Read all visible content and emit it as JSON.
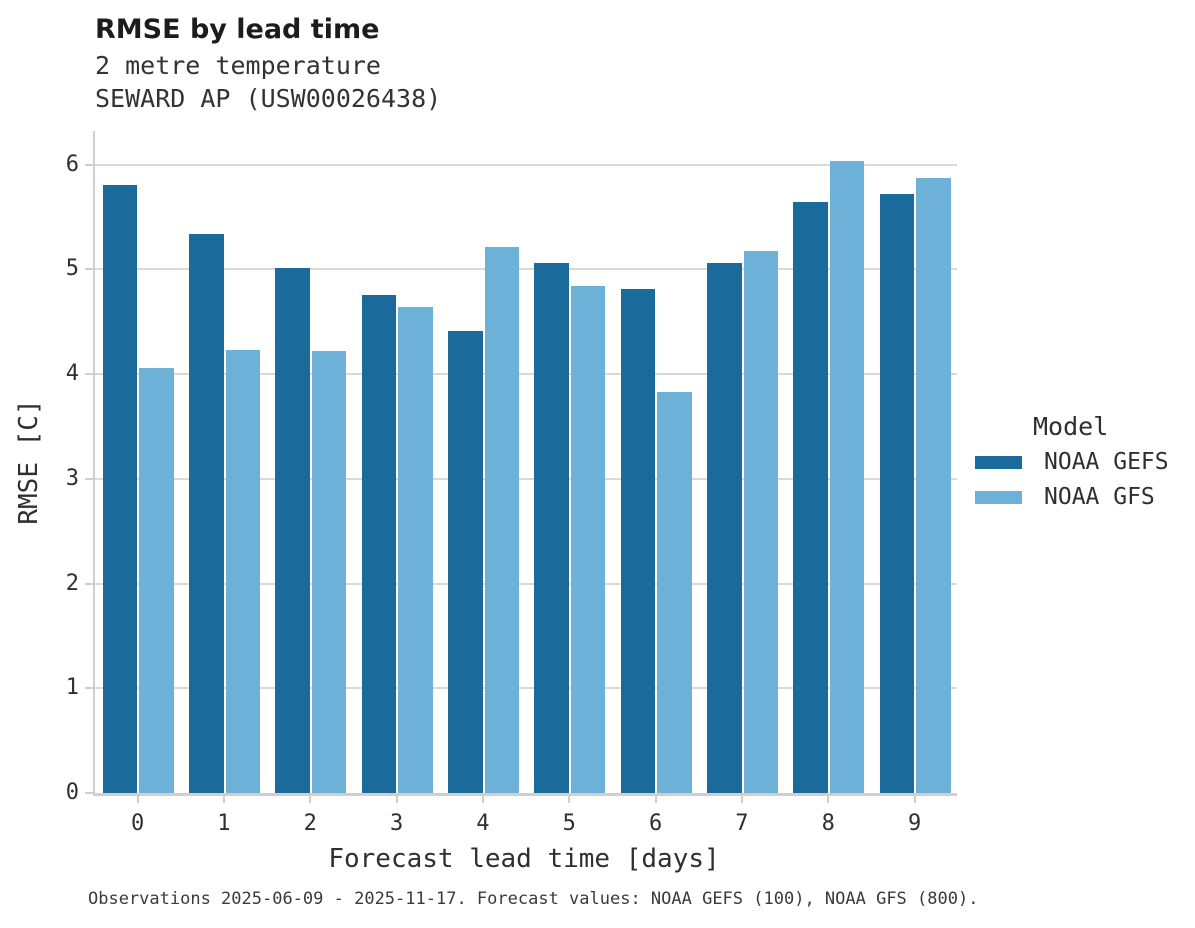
{
  "header": {
    "title": "RMSE by lead time",
    "subtitle_line1": "2 metre temperature",
    "subtitle_line2": "SEWARD AP (USW00026438)"
  },
  "legend": {
    "title": "Model",
    "entries": [
      {
        "label": "NOAA GEFS",
        "color": "#1b6a9c"
      },
      {
        "label": "NOAA GFS",
        "color": "#6db1d8"
      }
    ]
  },
  "caption": "Observations 2025-06-09 - 2025-11-17. Forecast values: NOAA GEFS (100), NOAA GFS (800).",
  "chart_data": {
    "type": "bar",
    "title": "RMSE by lead time",
    "subtitle": [
      "2 metre temperature",
      "SEWARD AP (USW00026438)"
    ],
    "xlabel": "Forecast lead time [days]",
    "ylabel": "RMSE [C]",
    "categories": [
      "0",
      "1",
      "2",
      "3",
      "4",
      "5",
      "6",
      "7",
      "8",
      "9"
    ],
    "series": [
      {
        "name": "NOAA GEFS",
        "color": "#1b6a9c",
        "values": [
          5.8,
          5.34,
          5.01,
          4.75,
          4.41,
          5.06,
          4.81,
          5.06,
          5.64,
          5.72
        ]
      },
      {
        "name": "NOAA GFS",
        "color": "#6db1d8",
        "values": [
          4.06,
          4.23,
          4.22,
          4.64,
          5.21,
          4.84,
          3.83,
          5.17,
          6.03,
          5.87
        ]
      }
    ],
    "ylim": [
      0,
      6.32
    ],
    "yticks": [
      0,
      1,
      2,
      3,
      4,
      5,
      6
    ],
    "grid": "horizontal",
    "grid_color": "#d9d9d9",
    "axis_color": "#cfcfcf",
    "legend_title": "Model",
    "legend_position": "right"
  }
}
